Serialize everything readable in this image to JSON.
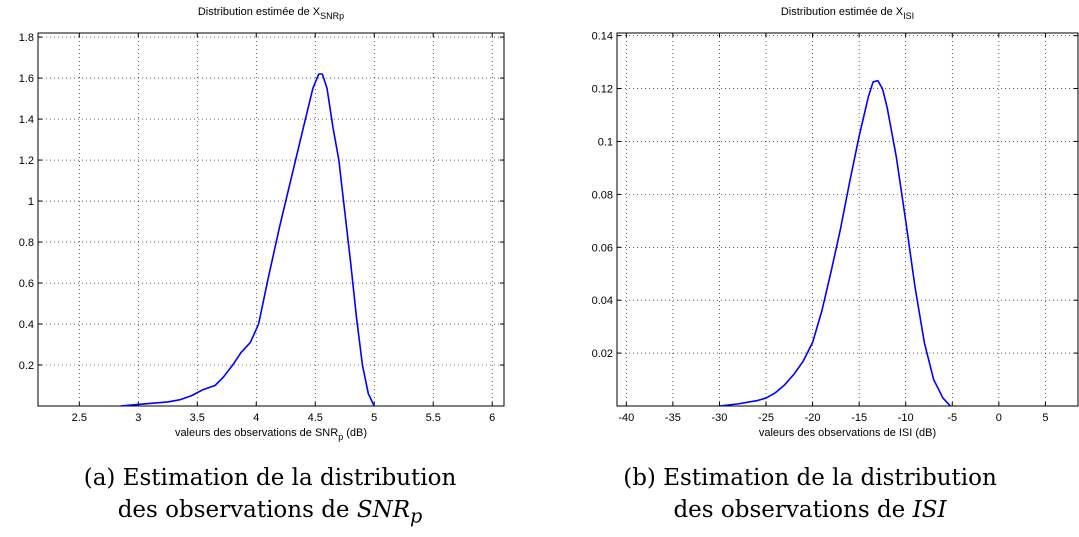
{
  "chart_data": [
    {
      "type": "line",
      "title": "Distribution estimée de X",
      "title_subscript": "SNRp",
      "xlabel": "valeurs des observations de SNR",
      "xlabel_subscript": "p",
      "xlabel_suffix": " (dB)",
      "ylabel": "",
      "xlim": [
        2.15,
        6.1
      ],
      "ylim": [
        0,
        1.82
      ],
      "grid": true,
      "xticks": [
        2.5,
        3,
        3.5,
        4,
        4.5,
        5,
        5.5,
        6
      ],
      "xtick_labels": [
        "2.5",
        "3",
        "3.5",
        "4",
        "4.5",
        "5",
        "5.5",
        "6"
      ],
      "yticks": [
        0.2,
        0.4,
        0.6,
        0.8,
        1,
        1.2,
        1.4,
        1.6,
        1.8
      ],
      "ytick_labels": [
        "0.2",
        "0.4",
        "0.6",
        "0.8",
        "1",
        "1.2",
        "1.4",
        "1.6",
        "1.8"
      ],
      "series": [
        {
          "color": "#0000ff",
          "x": [
            2.85,
            2.95,
            3.05,
            3.15,
            3.25,
            3.35,
            3.45,
            3.55,
            3.65,
            3.72,
            3.8,
            3.87,
            3.95,
            4.02,
            4.1,
            4.2,
            4.3,
            4.4,
            4.48,
            4.53,
            4.56,
            4.6,
            4.65,
            4.7,
            4.75,
            4.8,
            4.85,
            4.9,
            4.95,
            5.0
          ],
          "y": [
            0,
            0.005,
            0.01,
            0.015,
            0.02,
            0.03,
            0.05,
            0.08,
            0.1,
            0.14,
            0.2,
            0.26,
            0.31,
            0.4,
            0.62,
            0.88,
            1.12,
            1.36,
            1.55,
            1.62,
            1.62,
            1.55,
            1.36,
            1.2,
            0.95,
            0.7,
            0.43,
            0.2,
            0.06,
            0
          ]
        }
      ]
    },
    {
      "type": "line",
      "title": "Distribution estimée de X",
      "title_subscript": "ISI",
      "xlabel": "valeurs des observations de ISI (dB)",
      "xlabel_subscript": "",
      "xlabel_suffix": "",
      "ylabel": "",
      "xlim": [
        -41,
        8.5
      ],
      "ylim": [
        0,
        0.141
      ],
      "grid": true,
      "xticks": [
        -40,
        -35,
        -30,
        -25,
        -20,
        -15,
        -10,
        -5,
        0,
        5
      ],
      "xtick_labels": [
        "-40",
        "-35",
        "-30",
        "-25",
        "-20",
        "-15",
        "-10",
        "-5",
        "0",
        "5"
      ],
      "yticks": [
        0.02,
        0.04,
        0.06,
        0.08,
        0.1,
        0.12,
        0.14
      ],
      "ytick_labels": [
        "0.02",
        "0.04",
        "0.06",
        "0.08",
        "0.1",
        "0.12",
        "0.14"
      ],
      "series": [
        {
          "color": "#0000ff",
          "x": [
            -30,
            -28,
            -26,
            -25,
            -24,
            -23,
            -22,
            -21,
            -20,
            -19,
            -18,
            -17,
            -16,
            -15,
            -14,
            -13.5,
            -13,
            -12.5,
            -12,
            -11,
            -10,
            -9,
            -8,
            -7,
            -6,
            -5.2
          ],
          "y": [
            0,
            0.0008,
            0.002,
            0.003,
            0.005,
            0.008,
            0.012,
            0.017,
            0.024,
            0.036,
            0.051,
            0.067,
            0.085,
            0.102,
            0.117,
            0.1225,
            0.123,
            0.12,
            0.113,
            0.094,
            0.07,
            0.045,
            0.024,
            0.01,
            0.003,
            0
          ]
        }
      ]
    }
  ],
  "captions": [
    {
      "line1": "(a) Estimation de la distribution",
      "line2_prefix": "des observations de ",
      "line2_math": "SNR",
      "line2_math_sub": "p"
    },
    {
      "line1": "(b) Estimation de la distribution",
      "line2_prefix": "des observations de ",
      "line2_math": "ISI",
      "line2_math_sub": ""
    }
  ]
}
